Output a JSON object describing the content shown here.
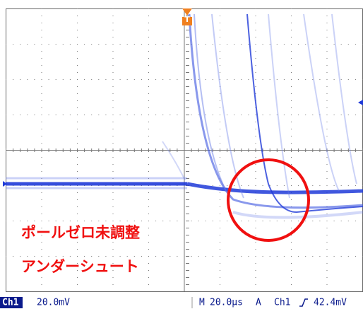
{
  "screen": {
    "trigger_marker": "T",
    "annotations": [
      "ポールゼロ未調整",
      "アンダーシュート"
    ],
    "status": {
      "channel": "Ch1",
      "scale": "20.0mV",
      "timebase_label": "M",
      "timebase": "20.0µs",
      "trigger_mode": "A",
      "trigger_channel": "Ch1",
      "trigger_level": "42.4mV"
    }
  }
}
